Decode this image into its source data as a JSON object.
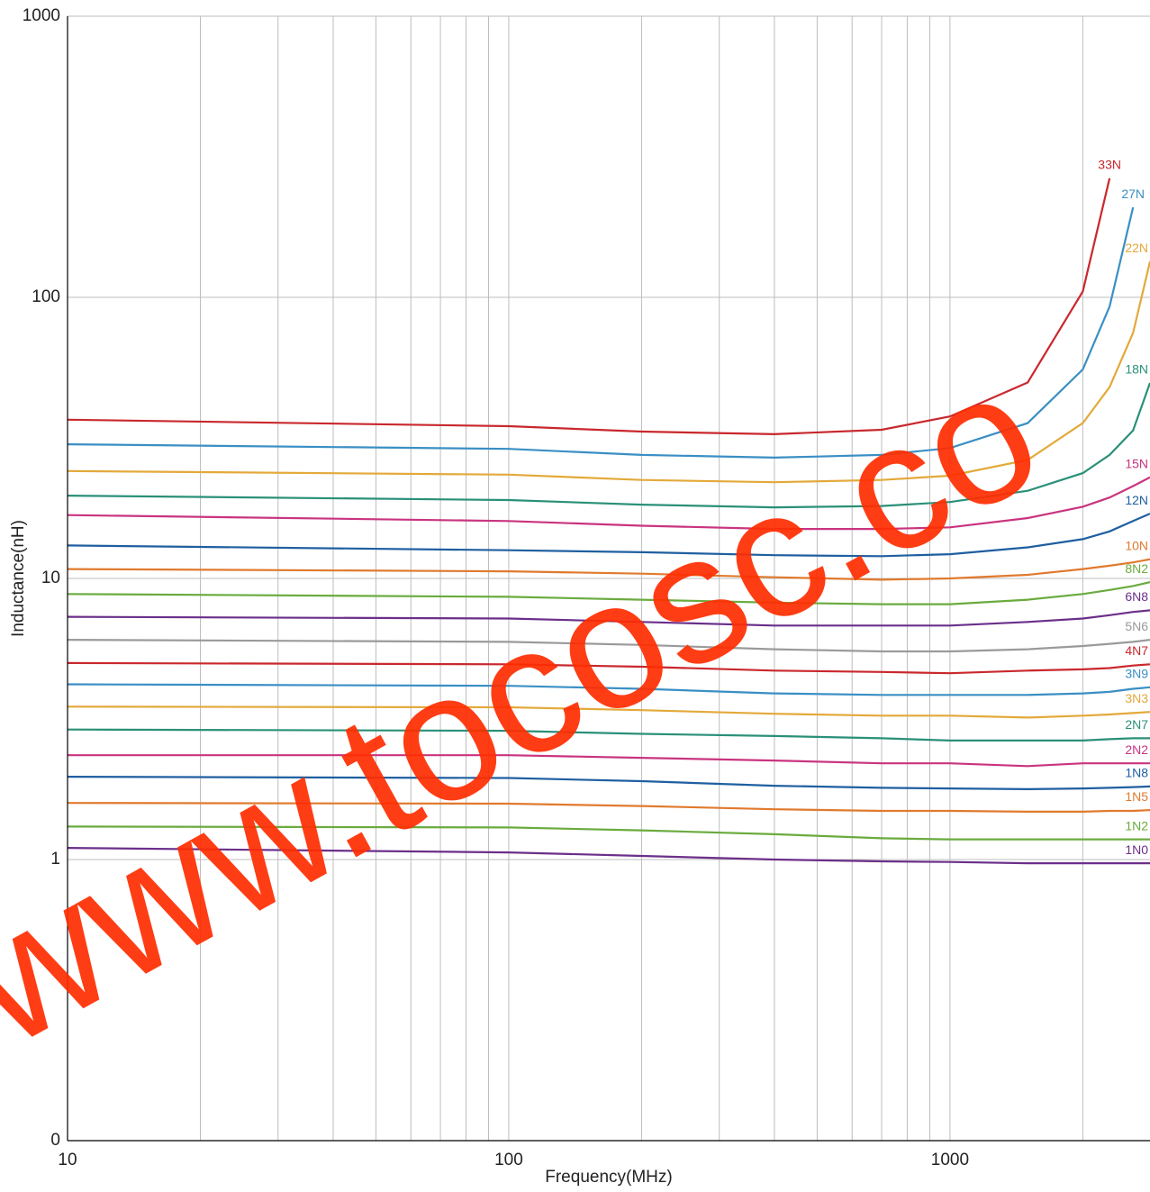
{
  "chart_data": {
    "type": "line",
    "x_label": "Frequency(MHz)",
    "y_label": "Inductance(nH)",
    "x_scale": "log",
    "y_scale": "log",
    "grid": true,
    "xlim": [
      10,
      2840
    ],
    "ylim": [
      0.1,
      1000
    ],
    "xticks": [
      10,
      100,
      1000
    ],
    "yticks": [
      {
        "value": 0.1,
        "label": "0"
      },
      1,
      10,
      100,
      1000
    ],
    "watermark": "www.tocosc.co",
    "x": [
      10,
      100,
      200,
      400,
      700,
      1000,
      1500,
      2000,
      2300,
      2600,
      2840
    ],
    "series": [
      {
        "name": "33N",
        "color": "#c9282d",
        "values": [
          36.7,
          34.8,
          33.3,
          32.6,
          33.8,
          37.7,
          49.8,
          105,
          265,
          null,
          null
        ]
      },
      {
        "name": "27N",
        "color": "#3a8fc4",
        "values": [
          30.0,
          28.9,
          27.5,
          26.9,
          27.5,
          29.1,
          35.7,
          55.4,
          92.7,
          209,
          null
        ]
      },
      {
        "name": "22N",
        "color": "#e3a93a",
        "values": [
          24.1,
          23.4,
          22.4,
          22.0,
          22.4,
          23.2,
          26.4,
          35.7,
          47.9,
          74.7,
          134
        ]
      },
      {
        "name": "18N",
        "color": "#2a9078",
        "values": [
          19.7,
          19.0,
          18.3,
          17.9,
          18.1,
          18.7,
          20.5,
          23.7,
          27.5,
          33.6,
          49.6
        ]
      },
      {
        "name": "15N",
        "color": "#c9347f",
        "values": [
          16.8,
          16.0,
          15.4,
          15.0,
          15.0,
          15.2,
          16.4,
          18.0,
          19.4,
          21.3,
          22.9
        ]
      },
      {
        "name": "12N",
        "color": "#1f5fa0",
        "values": [
          13.1,
          12.6,
          12.4,
          12.1,
          12.0,
          12.2,
          12.9,
          13.8,
          14.7,
          16.0,
          17.0
        ]
      },
      {
        "name": "10N",
        "color": "#e07a2e",
        "values": [
          10.8,
          10.6,
          10.4,
          10.1,
          9.9,
          10.0,
          10.3,
          10.8,
          11.1,
          11.4,
          11.7
        ]
      },
      {
        "name": "8N2",
        "color": "#6aab3e",
        "values": [
          8.8,
          8.6,
          8.4,
          8.2,
          8.1,
          8.1,
          8.4,
          8.8,
          9.1,
          9.4,
          9.7
        ]
      },
      {
        "name": "6N8",
        "color": "#6b2f8a",
        "values": [
          7.3,
          7.2,
          7.0,
          6.8,
          6.8,
          6.8,
          7.0,
          7.2,
          7.4,
          7.6,
          7.7
        ]
      },
      {
        "name": "5N6",
        "color": "#9a9a9a",
        "values": [
          6.05,
          5.95,
          5.8,
          5.6,
          5.5,
          5.5,
          5.6,
          5.75,
          5.85,
          5.95,
          6.05
        ]
      },
      {
        "name": "4N7",
        "color": "#c9282d",
        "values": [
          5.0,
          4.95,
          4.85,
          4.7,
          4.65,
          4.6,
          4.7,
          4.75,
          4.8,
          4.9,
          4.95
        ]
      },
      {
        "name": "3N9",
        "color": "#3a8fc4",
        "values": [
          4.2,
          4.15,
          4.05,
          3.9,
          3.85,
          3.85,
          3.85,
          3.9,
          3.95,
          4.05,
          4.1
        ]
      },
      {
        "name": "3N3",
        "color": "#e3a93a",
        "values": [
          3.5,
          3.48,
          3.4,
          3.3,
          3.25,
          3.25,
          3.2,
          3.25,
          3.28,
          3.32,
          3.35
        ]
      },
      {
        "name": "2N7",
        "color": "#2a9078",
        "values": [
          2.9,
          2.87,
          2.8,
          2.75,
          2.7,
          2.65,
          2.65,
          2.65,
          2.68,
          2.7,
          2.7
        ]
      },
      {
        "name": "2N2",
        "color": "#c9347f",
        "values": [
          2.35,
          2.35,
          2.3,
          2.25,
          2.2,
          2.2,
          2.15,
          2.2,
          2.2,
          2.2,
          2.2
        ]
      },
      {
        "name": "1N8",
        "color": "#1f5fa0",
        "values": [
          1.97,
          1.95,
          1.9,
          1.83,
          1.8,
          1.79,
          1.78,
          1.79,
          1.8,
          1.81,
          1.82
        ]
      },
      {
        "name": "1N5",
        "color": "#e07a2e",
        "values": [
          1.59,
          1.58,
          1.55,
          1.51,
          1.49,
          1.49,
          1.48,
          1.48,
          1.49,
          1.49,
          1.5
        ]
      },
      {
        "name": "1N2",
        "color": "#6aab3e",
        "values": [
          1.31,
          1.3,
          1.27,
          1.23,
          1.19,
          1.18,
          1.18,
          1.18,
          1.18,
          1.18,
          1.18
        ]
      },
      {
        "name": "1N0",
        "color": "#6b2f8a",
        "values": [
          1.1,
          1.06,
          1.03,
          1.0,
          0.985,
          0.98,
          0.97,
          0.97,
          0.97,
          0.97,
          0.97
        ]
      }
    ]
  }
}
